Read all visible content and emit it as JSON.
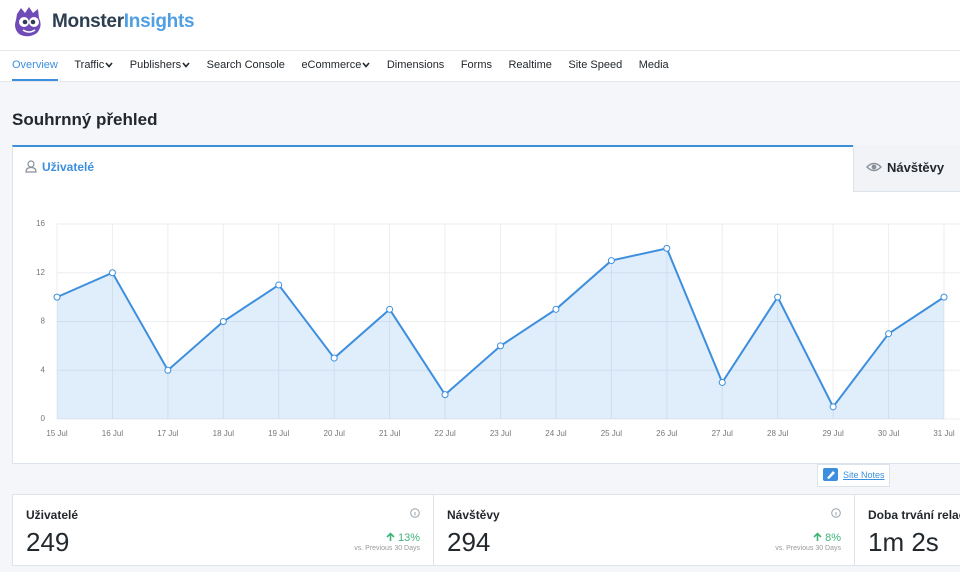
{
  "header": {
    "logo": [
      "Monster",
      "Insights"
    ]
  },
  "nav": [
    {
      "label": "Overview",
      "active": true
    },
    {
      "label": "Traffic",
      "dropdown": true
    },
    {
      "label": "Publishers",
      "dropdown": true
    },
    {
      "label": "Search Console"
    },
    {
      "label": "eCommerce",
      "dropdown": true
    },
    {
      "label": "Dimensions"
    },
    {
      "label": "Forms"
    },
    {
      "label": "Realtime"
    },
    {
      "label": "Site Speed"
    },
    {
      "label": "Media"
    }
  ],
  "title": "Souhrnný přehled",
  "tabs": [
    "Uživatelé",
    "Návštěvy"
  ],
  "chart_data": {
    "type": "line",
    "categories": [
      "15 Jul",
      "16 Jul",
      "17 Jul",
      "18 Jul",
      "19 Jul",
      "20 Jul",
      "21 Jul",
      "22 Jul",
      "23 Jul",
      "24 Jul",
      "25 Jul",
      "26 Jul",
      "27 Jul",
      "28 Jul",
      "29 Jul",
      "30 Jul",
      "31 Jul"
    ],
    "values": [
      10,
      12,
      4,
      8,
      11,
      5,
      9,
      2,
      6,
      9,
      13,
      14,
      3,
      10,
      1,
      7,
      10
    ],
    "color": "#3d8fde",
    "ylim": [
      0,
      16
    ],
    "yticks": [
      0,
      4,
      8,
      12,
      16
    ],
    "grid": true
  },
  "site_notes": "Site Notes",
  "stats": [
    {
      "label": "Uživatelé",
      "value": 249,
      "change": "13%",
      "comparison": "vs. Previous 30 Days"
    },
    {
      "label": "Návštěvy",
      "value": 294,
      "change": "8%",
      "comparison": "vs. Previous 30 Days"
    },
    {
      "label": "Doba trvání relace",
      "value": "1m 2s"
    }
  ]
}
